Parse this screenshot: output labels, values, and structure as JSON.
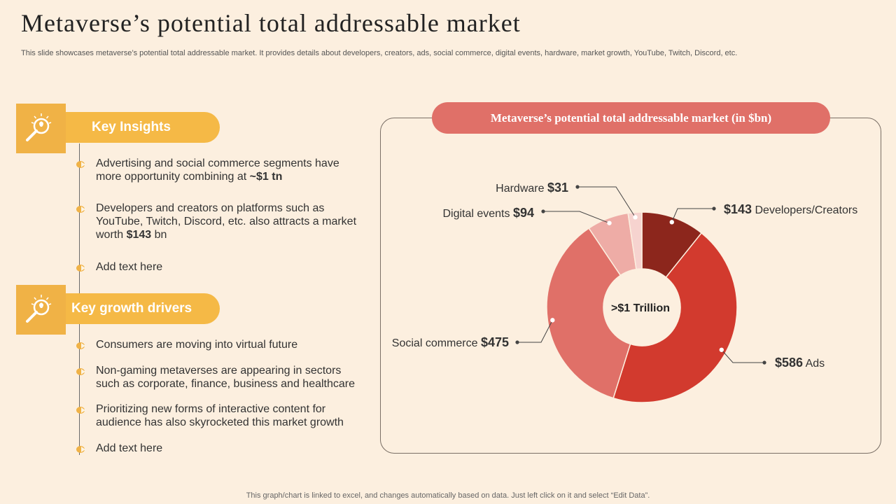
{
  "title": "Metaverse’s potential total addressable market",
  "subtitle": "This slide showcases metaverse’s potential total addressable market. It provides details about developers, creators, ads, social commerce, digital events, hardware, market growth, YouTube, Twitch, Discord, etc.",
  "sections": [
    {
      "heading": "Key Insights",
      "icon": "magnifier-bulb-icon",
      "bullets": [
        {
          "pre": "Advertising and social commerce segments have more opportunity combining at ",
          "bold": "~$1 tn",
          "post": ""
        },
        {
          "pre": "Developers and creators on platforms such as YouTube,  Twitch,  Discord, etc. also attracts a market worth  ",
          "bold": "$143",
          "post": " bn"
        },
        {
          "pre": "Add text here",
          "bold": "",
          "post": ""
        }
      ]
    },
    {
      "heading": "Key growth drivers",
      "icon": "magnifier-bulb-icon",
      "bullets": [
        {
          "pre": "Consumers are moving into virtual future",
          "bold": "",
          "post": ""
        },
        {
          "pre": "Non-gaming metaverses are appearing in sectors such as corporate, finance, business and healthcare",
          "bold": "",
          "post": ""
        },
        {
          "pre": "Prioritizing new forms of interactive content for audience has also skyrocketed this market growth",
          "bold": "",
          "post": ""
        },
        {
          "pre": "Add text here",
          "bold": "",
          "post": ""
        }
      ]
    }
  ],
  "chart_data": {
    "type": "pie",
    "donut": true,
    "title": "Metaverse’s potential total addressable market (in $bn)",
    "center_label": ">$1 Trillion",
    "slices": [
      {
        "label": "Developers/Creators",
        "value": 143,
        "value_label": "$143",
        "color": "#8c261c"
      },
      {
        "label": "Ads",
        "value": 586,
        "value_label": "$586",
        "color": "#d23a2e"
      },
      {
        "label": "Social commerce",
        "value": 475,
        "value_label": "$475",
        "color": "#e07068"
      },
      {
        "label": "Digital events",
        "value": 94,
        "value_label": "$94",
        "color": "#eeaca6"
      },
      {
        "label": "Hardware",
        "value": 31,
        "value_label": "$31",
        "color": "#f6d3cf"
      }
    ]
  },
  "colors": {
    "background": "#fcefdf",
    "accent": "#f5b946",
    "chart_title_bg": "#e07068"
  },
  "footer": "This graph/chart is linked to excel,  and changes automatically based on data. Just left click on it and select “Edit Data”."
}
